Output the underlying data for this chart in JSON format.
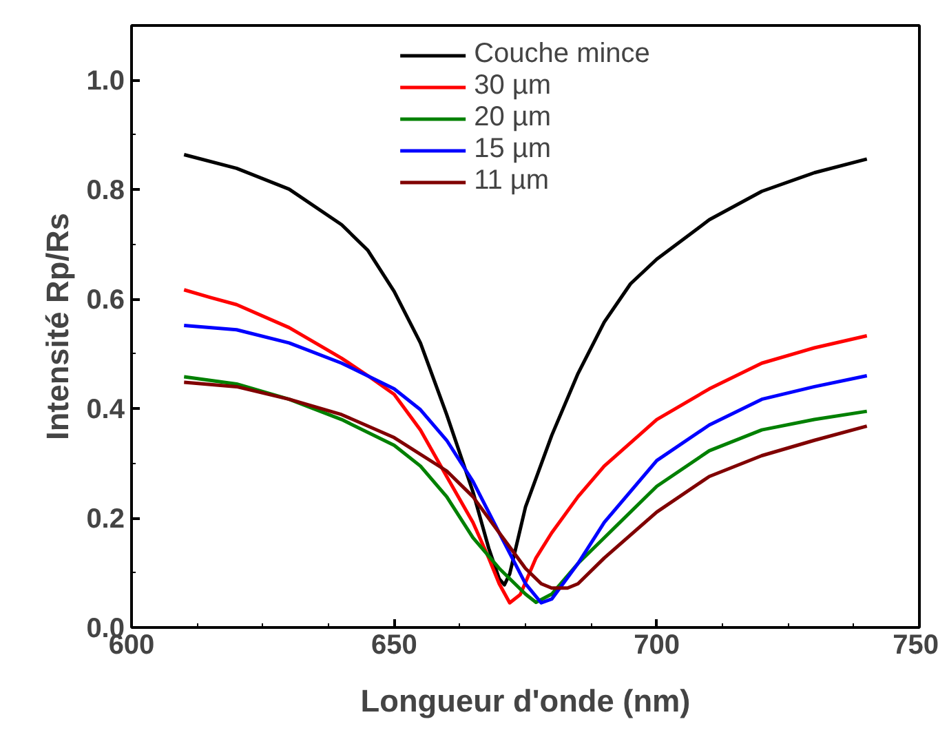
{
  "chart_data": {
    "type": "line",
    "xlabel": "Longueur d'onde (nm)",
    "ylabel": "Intensité Rp/Rs",
    "xlim": [
      600,
      750
    ],
    "ylim": [
      0,
      1.1
    ],
    "xticks": [
      600,
      650,
      700,
      750
    ],
    "yticks": [
      {
        "value": 0,
        "label": "0.0"
      },
      {
        "value": 0.2,
        "label": "0.2"
      },
      {
        "value": 0.4,
        "label": "0.4"
      },
      {
        "value": 0.6,
        "label": "0.6"
      },
      {
        "value": 0.8,
        "label": "0.8"
      },
      {
        "value": 1.0,
        "label": "1.0"
      }
    ],
    "grid": false,
    "legend": "top",
    "marker": "none",
    "line_style": "solid",
    "series": [
      {
        "name": "Couche mince",
        "color": "#000000",
        "x": [
          610,
          620,
          630,
          640,
          645,
          650,
          655,
          660,
          665,
          668,
          670,
          671,
          672,
          675,
          680,
          685,
          690,
          695,
          700,
          710,
          720,
          730,
          740
        ],
        "values": [
          0.864,
          0.839,
          0.801,
          0.736,
          0.689,
          0.614,
          0.52,
          0.389,
          0.248,
          0.145,
          0.089,
          0.078,
          0.098,
          0.22,
          0.351,
          0.464,
          0.558,
          0.628,
          0.673,
          0.745,
          0.797,
          0.831,
          0.856
        ]
      },
      {
        "name": "30 µm",
        "color": "#ff0000",
        "x": [
          610,
          615,
          620,
          630,
          640,
          645,
          650,
          655,
          660,
          665,
          668,
          670,
          672,
          674,
          677,
          680,
          685,
          690,
          700,
          710,
          720,
          730,
          740
        ],
        "values": [
          0.617,
          0.603,
          0.59,
          0.548,
          0.492,
          0.46,
          0.426,
          0.361,
          0.276,
          0.192,
          0.127,
          0.08,
          0.045,
          0.06,
          0.127,
          0.173,
          0.239,
          0.295,
          0.38,
          0.436,
          0.483,
          0.511,
          0.533
        ]
      },
      {
        "name": "20 µm",
        "color": "#008000",
        "x": [
          610,
          620,
          630,
          640,
          650,
          655,
          660,
          665,
          670,
          675,
          677,
          680,
          685,
          690,
          700,
          710,
          720,
          730,
          740
        ],
        "values": [
          0.458,
          0.445,
          0.417,
          0.38,
          0.333,
          0.295,
          0.239,
          0.164,
          0.108,
          0.061,
          0.046,
          0.061,
          0.117,
          0.164,
          0.258,
          0.323,
          0.361,
          0.38,
          0.395
        ]
      },
      {
        "name": "15 µm",
        "color": "#0000ff",
        "x": [
          610,
          620,
          630,
          640,
          650,
          655,
          660,
          665,
          670,
          675,
          678,
          680,
          685,
          690,
          700,
          710,
          720,
          730,
          740
        ],
        "values": [
          0.552,
          0.544,
          0.52,
          0.483,
          0.436,
          0.398,
          0.342,
          0.267,
          0.173,
          0.08,
          0.045,
          0.052,
          0.117,
          0.192,
          0.305,
          0.37,
          0.417,
          0.44,
          0.46
        ]
      },
      {
        "name": "11 µm",
        "color": "#800000",
        "x": [
          610,
          620,
          630,
          640,
          650,
          660,
          665,
          670,
          675,
          678,
          680,
          683,
          685,
          690,
          700,
          710,
          720,
          730,
          740
        ],
        "values": [
          0.448,
          0.44,
          0.417,
          0.389,
          0.347,
          0.286,
          0.239,
          0.173,
          0.108,
          0.08,
          0.072,
          0.072,
          0.08,
          0.127,
          0.211,
          0.276,
          0.314,
          0.342,
          0.368
        ]
      }
    ]
  }
}
